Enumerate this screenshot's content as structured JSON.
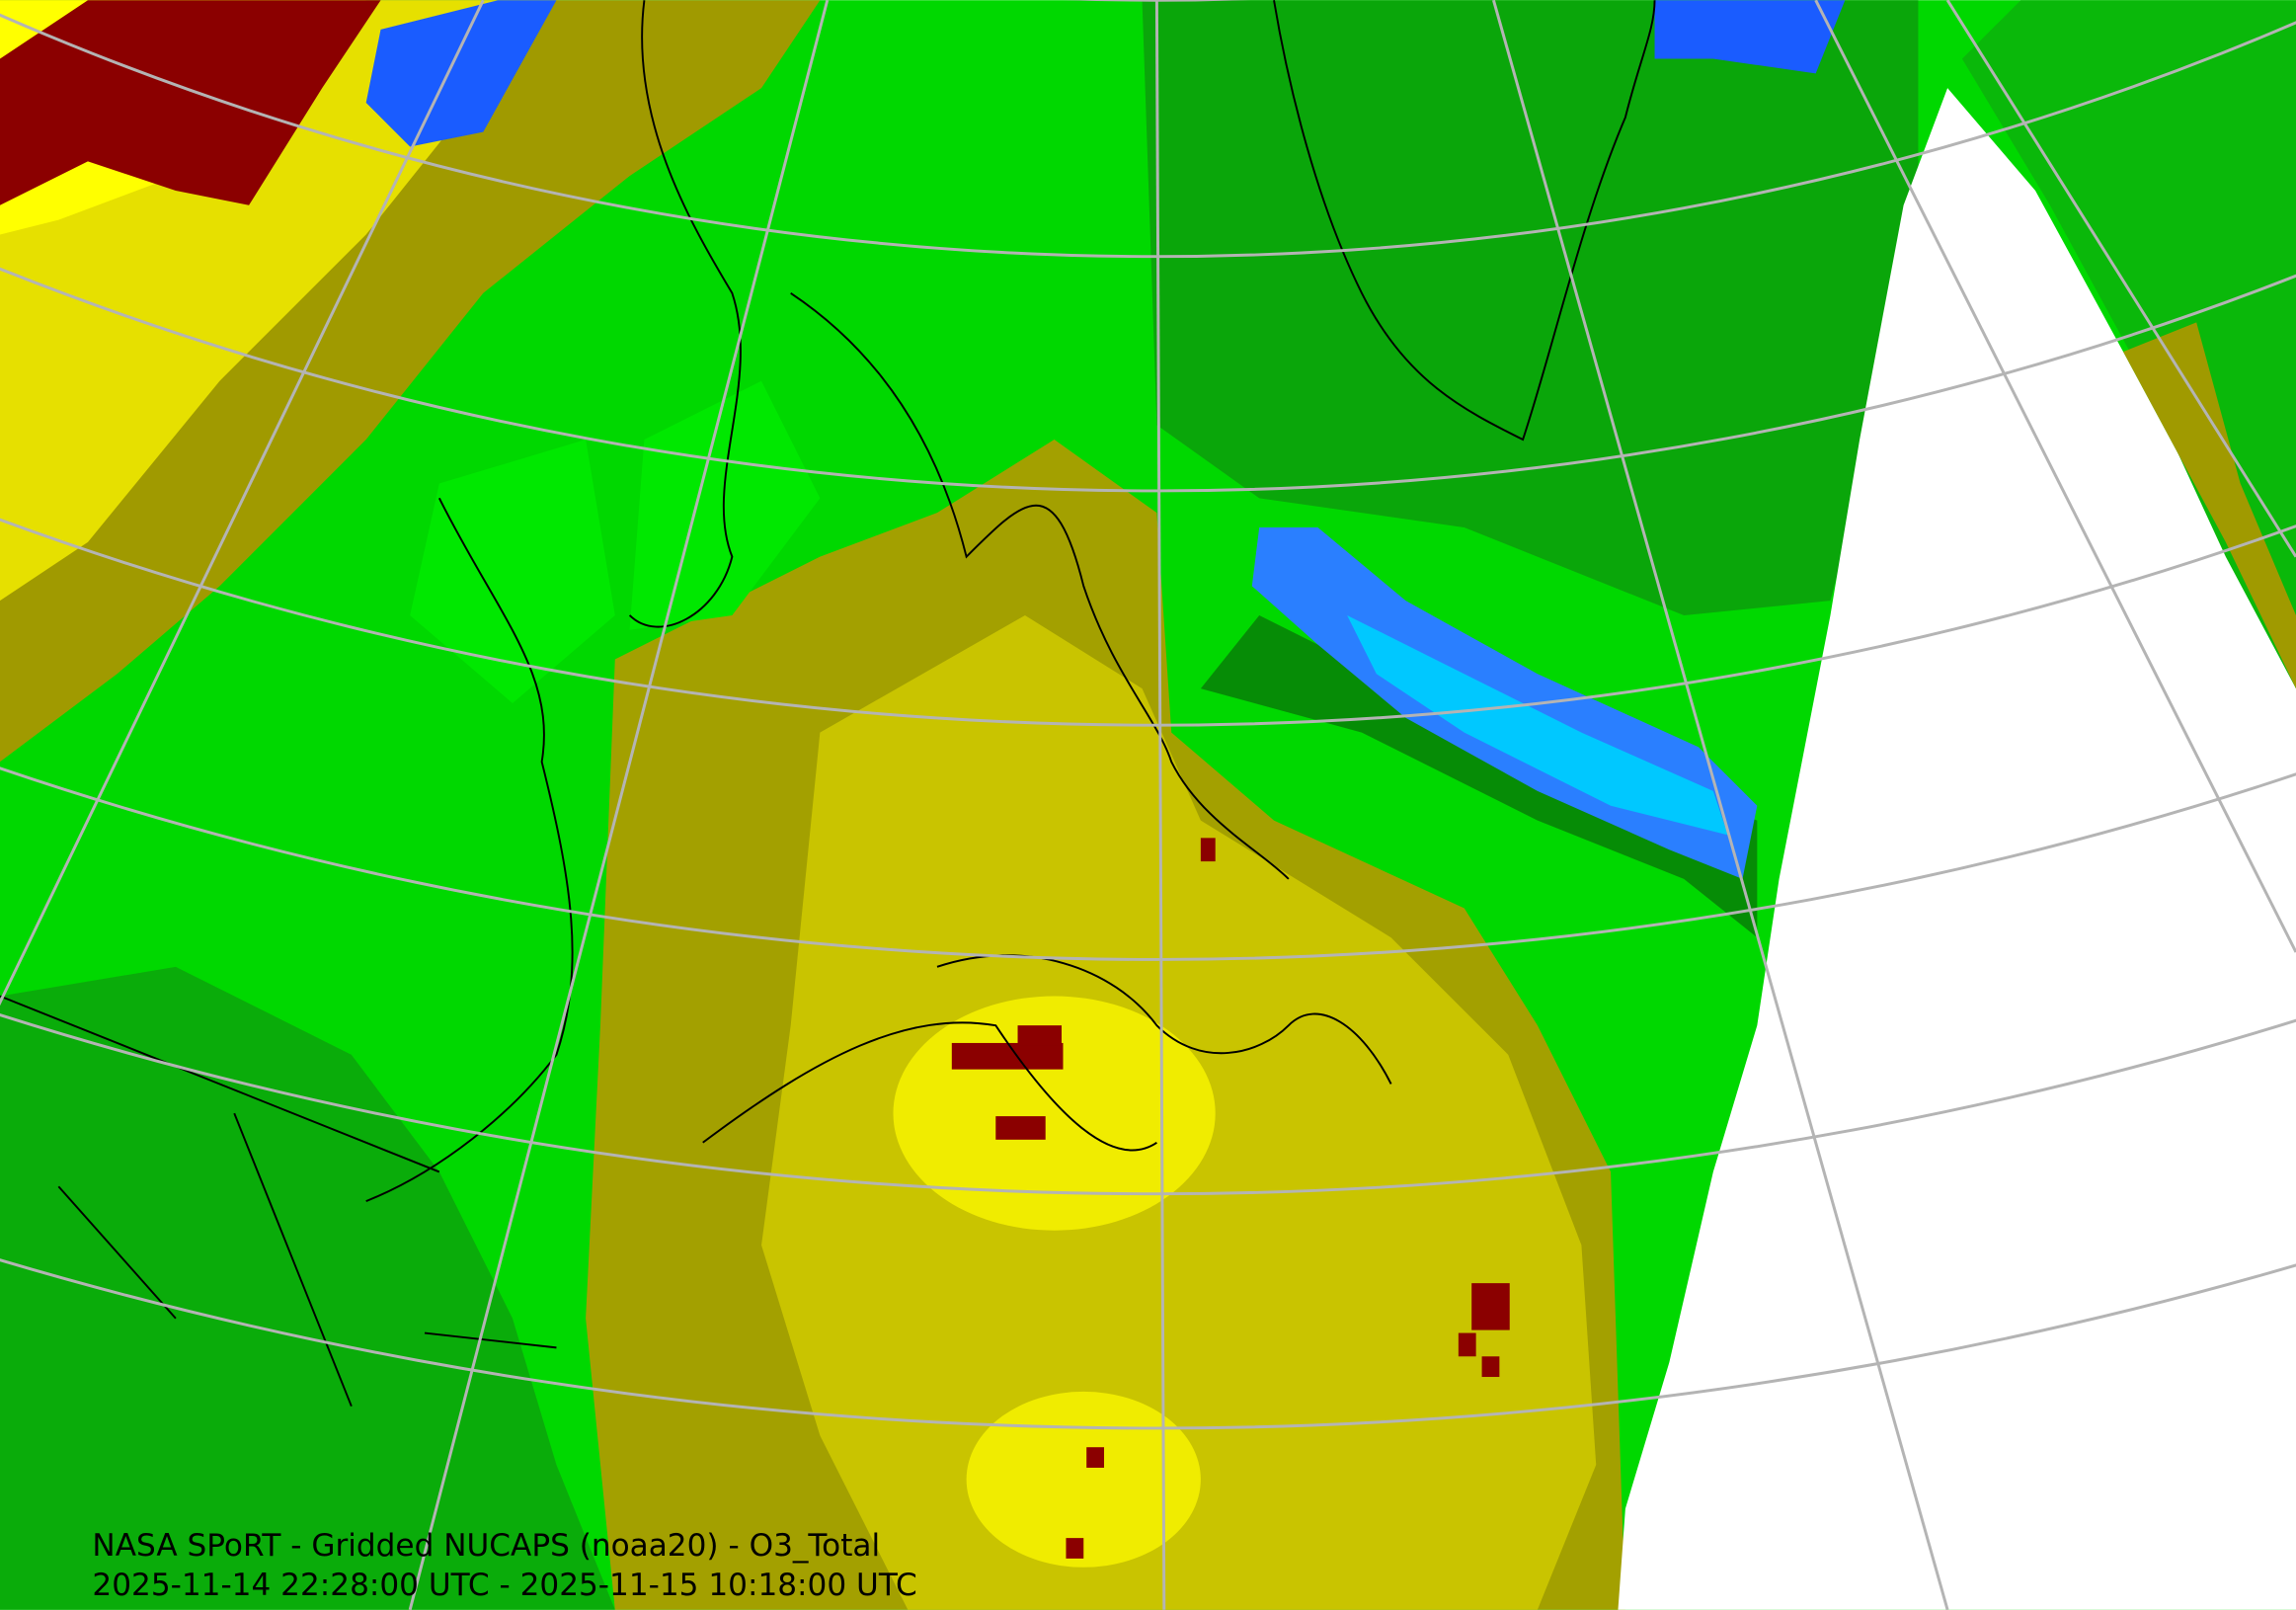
{
  "caption": {
    "title": "NASA SPoRT - Gridded NUCAPS (noaa20) - O3_Total",
    "time_range": "2025-11-14 22:28:00 UTC - 2025-11-15 10:18:00 UTC"
  }
}
